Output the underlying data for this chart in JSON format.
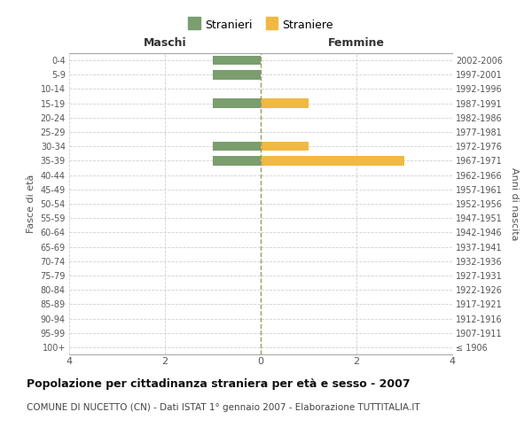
{
  "age_groups": [
    "100+",
    "95-99",
    "90-94",
    "85-89",
    "80-84",
    "75-79",
    "70-74",
    "65-69",
    "60-64",
    "55-59",
    "50-54",
    "45-49",
    "40-44",
    "35-39",
    "30-34",
    "25-29",
    "20-24",
    "15-19",
    "10-14",
    "5-9",
    "0-4"
  ],
  "birth_years": [
    "≤ 1906",
    "1907-1911",
    "1912-1916",
    "1917-1921",
    "1922-1926",
    "1927-1931",
    "1932-1936",
    "1937-1941",
    "1942-1946",
    "1947-1951",
    "1952-1956",
    "1957-1961",
    "1962-1966",
    "1967-1971",
    "1972-1976",
    "1977-1981",
    "1982-1986",
    "1987-1991",
    "1992-1996",
    "1997-2001",
    "2002-2006"
  ],
  "maschi": [
    0,
    0,
    0,
    0,
    0,
    0,
    0,
    0,
    0,
    0,
    0,
    0,
    0,
    1,
    1,
    0,
    0,
    1,
    0,
    1,
    1
  ],
  "femmine": [
    0,
    0,
    0,
    0,
    0,
    0,
    0,
    0,
    0,
    0,
    0,
    0,
    0,
    3,
    1,
    0,
    0,
    1,
    0,
    0,
    0
  ],
  "color_maschi": "#7a9e6e",
  "color_femmine": "#f0b942",
  "xlim": 4,
  "title": "Popolazione per cittadinanza straniera per età e sesso - 2007",
  "subtitle": "COMUNE DI NUCETTO (CN) - Dati ISTAT 1° gennaio 2007 - Elaborazione TUTTITALIA.IT",
  "left_label": "Maschi",
  "right_label": "Femmine",
  "ylabel_left": "Fasce di età",
  "ylabel_right": "Anni di nascita",
  "legend_stranieri": "Stranieri",
  "legend_straniere": "Straniere",
  "background_color": "#ffffff",
  "grid_color": "#d0d0d0",
  "center_line_color": "#aaaaaa"
}
